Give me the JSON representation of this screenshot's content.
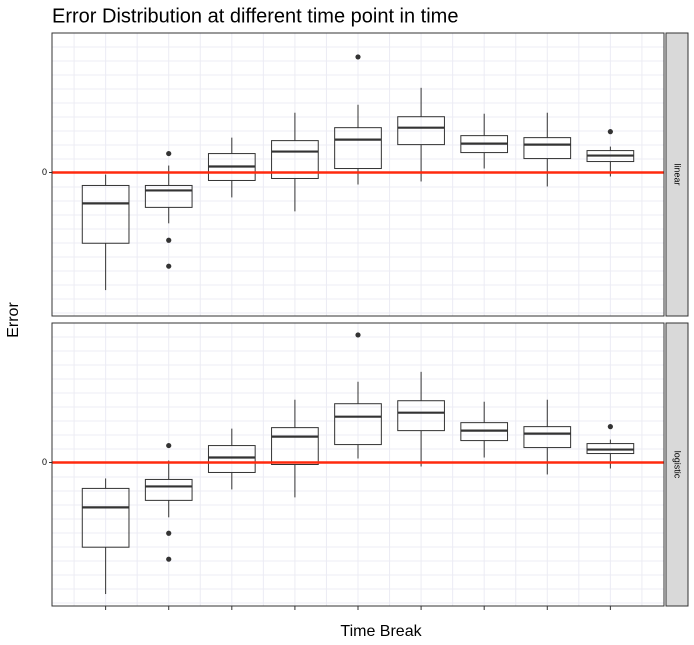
{
  "chart_data": {
    "type": "box",
    "title": "Error Distribution at different time point in time",
    "x_label": "Time Break",
    "y_label": "Error",
    "categories": [
      null,
      null,
      null,
      null,
      null,
      null,
      null,
      null,
      null
    ],
    "ylim": [
      -7.2,
      7
    ],
    "yticks": [
      0
    ],
    "hline": 0,
    "hline_color": "#ff2a0e",
    "box_color": "#333333",
    "panels": [
      {
        "label": "linear",
        "boxes": [
          {
            "low": -5.9,
            "q1": -3.55,
            "median": -1.55,
            "q3": -0.65,
            "high": -0.1,
            "outliers": []
          },
          {
            "low": -2.55,
            "q1": -1.75,
            "median": -0.9,
            "q3": -0.65,
            "high": 0.35,
            "outliers": [
              0.95,
              -3.4,
              -4.7
            ]
          },
          {
            "low": -1.25,
            "q1": -0.4,
            "median": 0.3,
            "q3": 0.95,
            "high": 1.75,
            "outliers": []
          },
          {
            "low": -1.95,
            "q1": -0.3,
            "median": 1.05,
            "q3": 1.6,
            "high": 3.0,
            "outliers": []
          },
          {
            "low": -0.6,
            "q1": 0.2,
            "median": 1.65,
            "q3": 2.25,
            "high": 3.4,
            "outliers": [
              5.8
            ]
          },
          {
            "low": -0.45,
            "q1": 1.4,
            "median": 2.25,
            "q3": 2.8,
            "high": 4.25,
            "outliers": []
          },
          {
            "low": 0.2,
            "q1": 1.0,
            "median": 1.45,
            "q3": 1.85,
            "high": 2.95,
            "outliers": []
          },
          {
            "low": -0.7,
            "q1": 0.7,
            "median": 1.4,
            "q3": 1.75,
            "high": 3.0,
            "outliers": []
          },
          {
            "low": -0.2,
            "q1": 0.55,
            "median": 0.85,
            "q3": 1.1,
            "high": 1.3,
            "outliers": [
              2.05
            ]
          }
        ]
      },
      {
        "label": "logistic",
        "boxes": [
          {
            "low": -6.6,
            "q1": -4.25,
            "median": -2.25,
            "q3": -1.3,
            "high": -0.8,
            "outliers": []
          },
          {
            "low": -2.75,
            "q1": -1.9,
            "median": -1.2,
            "q3": -0.85,
            "high": 0.1,
            "outliers": [
              0.85,
              -3.55,
              -4.85
            ]
          },
          {
            "low": -1.35,
            "q1": -0.5,
            "median": 0.25,
            "q3": 0.85,
            "high": 1.7,
            "outliers": []
          },
          {
            "low": -1.75,
            "q1": -0.1,
            "median": 1.3,
            "q3": 1.75,
            "high": 3.15,
            "outliers": []
          },
          {
            "low": 0.2,
            "q1": 0.9,
            "median": 2.3,
            "q3": 2.95,
            "high": 4.05,
            "outliers": [
              6.4
            ]
          },
          {
            "low": -0.2,
            "q1": 1.6,
            "median": 2.5,
            "q3": 3.1,
            "high": 4.55,
            "outliers": []
          },
          {
            "low": 0.25,
            "q1": 1.1,
            "median": 1.6,
            "q3": 2.0,
            "high": 3.05,
            "outliers": []
          },
          {
            "low": -0.6,
            "q1": 0.75,
            "median": 1.45,
            "q3": 1.8,
            "high": 3.15,
            "outliers": []
          },
          {
            "low": -0.3,
            "q1": 0.45,
            "median": 0.65,
            "q3": 0.95,
            "high": 1.15,
            "outliers": [
              1.8
            ]
          }
        ]
      }
    ]
  }
}
